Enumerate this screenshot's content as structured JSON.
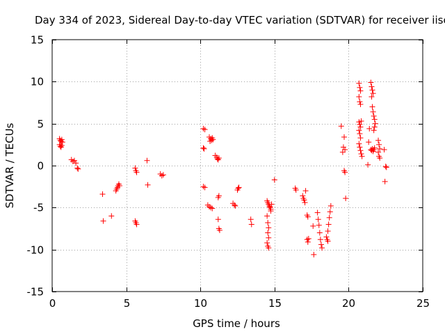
{
  "chart_data": {
    "type": "scatter",
    "title": "Day 334 of 2023, Sidereal Day-to-day VTEC variation (SDTVAR) for receiver iisc",
    "xlabel": "GPS time / hours",
    "ylabel": "SDTVAR / TECUs",
    "xlim": [
      0,
      25
    ],
    "ylim": [
      -15,
      15
    ],
    "x_ticks": [
      0,
      5,
      10,
      15,
      20,
      25
    ],
    "y_ticks": [
      -15,
      -10,
      -5,
      0,
      5,
      10,
      15
    ],
    "x_tick_labels": [
      "0",
      "5",
      "10",
      "15",
      "20",
      "25"
    ],
    "y_tick_labels": [
      "-15",
      "-10",
      "-5",
      "0",
      "5",
      "10",
      "15"
    ],
    "grid": true,
    "marker": "+",
    "color": "#ff0000",
    "series": [
      {
        "name": "SDTVAR",
        "points": [
          [
            0.5,
            3.2
          ],
          [
            0.55,
            3.0
          ],
          [
            0.6,
            2.9
          ],
          [
            0.65,
            3.1
          ],
          [
            0.7,
            2.8
          ],
          [
            0.5,
            2.5
          ],
          [
            0.55,
            2.3
          ],
          [
            0.6,
            2.2
          ],
          [
            0.65,
            2.4
          ],
          [
            1.3,
            0.7
          ],
          [
            1.4,
            0.5
          ],
          [
            1.5,
            0.6
          ],
          [
            1.6,
            0.3
          ],
          [
            1.7,
            -0.3
          ],
          [
            1.75,
            -0.4
          ],
          [
            3.4,
            -3.4
          ],
          [
            3.45,
            -6.6
          ],
          [
            4.0,
            -6.0
          ],
          [
            4.3,
            -3.0
          ],
          [
            4.35,
            -2.8
          ],
          [
            4.4,
            -2.6
          ],
          [
            4.45,
            -2.4
          ],
          [
            4.5,
            -2.2
          ],
          [
            4.55,
            -2.4
          ],
          [
            5.6,
            -0.3
          ],
          [
            5.65,
            -0.6
          ],
          [
            5.7,
            -0.8
          ],
          [
            5.6,
            -6.6
          ],
          [
            5.65,
            -6.8
          ],
          [
            5.7,
            -7.0
          ],
          [
            6.4,
            0.6
          ],
          [
            6.45,
            -2.3
          ],
          [
            7.3,
            -1.0
          ],
          [
            7.4,
            -1.2
          ],
          [
            7.5,
            -1.1
          ],
          [
            10.2,
            4.4
          ],
          [
            10.3,
            4.3
          ],
          [
            10.2,
            2.1
          ],
          [
            10.25,
            2.0
          ],
          [
            10.2,
            -2.5
          ],
          [
            10.3,
            -2.6
          ],
          [
            10.5,
            -4.7
          ],
          [
            10.6,
            -4.9
          ],
          [
            10.7,
            -5.0
          ],
          [
            10.8,
            -5.1
          ],
          [
            10.6,
            3.4
          ],
          [
            10.7,
            3.2
          ],
          [
            10.75,
            3.0
          ],
          [
            10.8,
            3.3
          ],
          [
            10.85,
            3.1
          ],
          [
            10.65,
            2.9
          ],
          [
            11.0,
            1.2
          ],
          [
            11.1,
            1.0
          ],
          [
            11.15,
            0.8
          ],
          [
            11.2,
            0.7
          ],
          [
            11.25,
            0.9
          ],
          [
            11.2,
            -3.8
          ],
          [
            11.25,
            -3.6
          ],
          [
            11.2,
            -6.4
          ],
          [
            11.25,
            -7.5
          ],
          [
            11.3,
            -7.7
          ],
          [
            12.2,
            -4.5
          ],
          [
            12.3,
            -4.7
          ],
          [
            12.35,
            -4.8
          ],
          [
            12.5,
            -2.9
          ],
          [
            12.55,
            -2.7
          ],
          [
            12.6,
            -2.6
          ],
          [
            13.4,
            -6.4
          ],
          [
            13.45,
            -7.0
          ],
          [
            14.5,
            -4.2
          ],
          [
            14.55,
            -4.4
          ],
          [
            14.6,
            -4.6
          ],
          [
            14.65,
            -4.8
          ],
          [
            14.7,
            -5.0
          ],
          [
            14.75,
            -5.2
          ],
          [
            14.5,
            -6.0
          ],
          [
            14.55,
            -6.8
          ],
          [
            14.6,
            -7.4
          ],
          [
            14.55,
            -8.0
          ],
          [
            14.6,
            -8.6
          ],
          [
            14.5,
            -9.2
          ],
          [
            14.55,
            -9.6
          ],
          [
            14.6,
            -9.8
          ],
          [
            14.7,
            -4.9
          ],
          [
            14.75,
            -5.4
          ],
          [
            14.8,
            -4.6
          ],
          [
            15.0,
            -1.7
          ],
          [
            16.4,
            -2.7
          ],
          [
            16.45,
            -2.9
          ],
          [
            16.9,
            -3.6
          ],
          [
            16.95,
            -3.9
          ],
          [
            17.0,
            -4.1
          ],
          [
            17.05,
            -4.4
          ],
          [
            17.1,
            -3.0
          ],
          [
            17.2,
            -5.9
          ],
          [
            17.25,
            -6.1
          ],
          [
            17.2,
            -8.8
          ],
          [
            17.25,
            -9.1
          ],
          [
            17.3,
            -8.7
          ],
          [
            17.6,
            -7.2
          ],
          [
            17.65,
            -10.6
          ],
          [
            17.9,
            -5.6
          ],
          [
            17.95,
            -6.4
          ],
          [
            18.0,
            -7.1
          ],
          [
            18.05,
            -8.0
          ],
          [
            18.1,
            -8.8
          ],
          [
            18.15,
            -9.4
          ],
          [
            18.2,
            -9.8
          ],
          [
            18.5,
            -8.5
          ],
          [
            18.55,
            -8.8
          ],
          [
            18.6,
            -7.8
          ],
          [
            18.65,
            -7.0
          ],
          [
            18.7,
            -6.2
          ],
          [
            18.75,
            -5.5
          ],
          [
            18.8,
            -4.8
          ],
          [
            18.6,
            -9.0
          ],
          [
            19.5,
            4.7
          ],
          [
            19.6,
            1.6
          ],
          [
            19.65,
            2.2
          ],
          [
            19.7,
            3.4
          ],
          [
            19.75,
            1.9
          ],
          [
            19.7,
            -0.6
          ],
          [
            19.75,
            -0.8
          ],
          [
            19.8,
            -3.9
          ],
          [
            20.7,
            9.8
          ],
          [
            20.75,
            9.3
          ],
          [
            20.8,
            8.9
          ],
          [
            20.7,
            8.2
          ],
          [
            20.75,
            7.6
          ],
          [
            20.8,
            7.3
          ],
          [
            20.7,
            5.2
          ],
          [
            20.75,
            4.9
          ],
          [
            20.8,
            4.6
          ],
          [
            20.7,
            4.2
          ],
          [
            20.75,
            3.8
          ],
          [
            20.8,
            3.3
          ],
          [
            20.7,
            2.6
          ],
          [
            20.75,
            2.2
          ],
          [
            20.8,
            1.8
          ],
          [
            20.85,
            1.4
          ],
          [
            20.9,
            1.1
          ],
          [
            20.85,
            5.3
          ],
          [
            21.3,
            0.1
          ],
          [
            21.35,
            2.8
          ],
          [
            21.4,
            4.4
          ],
          [
            21.5,
            9.9
          ],
          [
            21.55,
            9.4
          ],
          [
            21.6,
            9.0
          ],
          [
            21.65,
            8.6
          ],
          [
            21.55,
            8.2
          ],
          [
            21.6,
            7.0
          ],
          [
            21.65,
            6.4
          ],
          [
            21.7,
            5.9
          ],
          [
            21.75,
            5.5
          ],
          [
            21.8,
            5.0
          ],
          [
            21.75,
            4.6
          ],
          [
            21.7,
            4.2
          ],
          [
            21.5,
            1.9
          ],
          [
            21.55,
            1.8
          ],
          [
            21.6,
            2.0
          ],
          [
            21.65,
            1.7
          ],
          [
            21.7,
            1.9
          ],
          [
            21.75,
            2.1
          ],
          [
            22.0,
            3.0
          ],
          [
            22.05,
            2.5
          ],
          [
            22.1,
            2.0
          ],
          [
            22.0,
            1.6
          ],
          [
            22.05,
            1.1
          ],
          [
            22.1,
            0.9
          ],
          [
            22.4,
            1.9
          ],
          [
            22.45,
            -1.9
          ],
          [
            22.5,
            -0.1
          ],
          [
            22.55,
            -0.2
          ]
        ]
      }
    ]
  }
}
